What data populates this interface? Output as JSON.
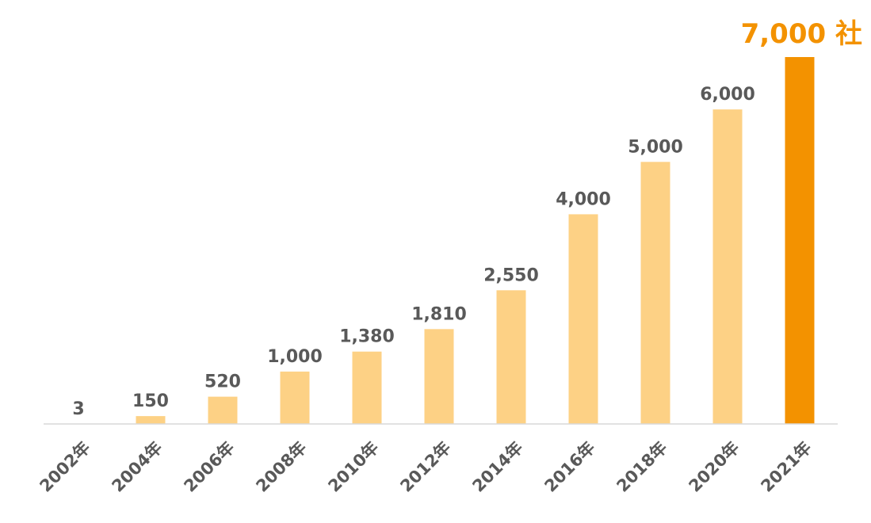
{
  "chart_data": {
    "type": "bar",
    "categories": [
      "2002年",
      "2004年",
      "2006年",
      "2008年",
      "2010年",
      "2012年",
      "2014年",
      "2016年",
      "2018年",
      "2020年",
      "2021年"
    ],
    "values": [
      3,
      150,
      520,
      1000,
      1380,
      1810,
      2550,
      4000,
      5000,
      6000,
      7000
    ],
    "data_labels": [
      "3",
      "150",
      "520",
      "1,000",
      "1,380",
      "1,810",
      "2,550",
      "4,000",
      "5,000",
      "6,000",
      "7,000 社"
    ],
    "title": "",
    "xlabel": "",
    "ylabel": "",
    "ylim": [
      0,
      7000
    ],
    "grid": false,
    "legend": "none",
    "highlight_index": 10,
    "colors": {
      "bar": "#fdd185",
      "highlight": "#f39200",
      "label": "#595959",
      "axis": "#d9d9d9"
    }
  }
}
